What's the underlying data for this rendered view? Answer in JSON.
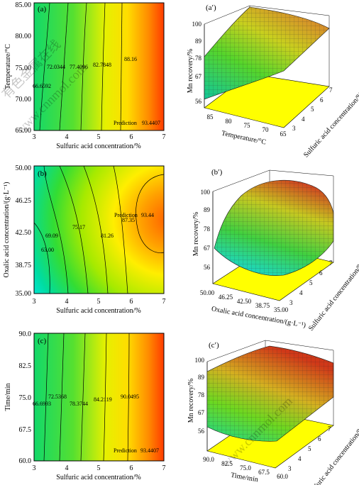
{
  "watermark": {
    "text": "www.cnnmol.com",
    "cn_text": "有色金属在线"
  },
  "colors": {
    "contour_low": "#00e5e5",
    "contour_mid": "#33dd33",
    "contour_high1": "#ffff00",
    "contour_high2": "#ff8800",
    "contour_top": "#ff2000",
    "surface_floor": "#ffff00"
  },
  "chart_data": [
    {
      "panel": "(a)",
      "type": "contour",
      "xlabel": "Sulfuric acid concentration/%",
      "ylabel": "Temperature/°C",
      "xlim": [
        3,
        7
      ],
      "ylim": [
        65,
        85
      ],
      "xticks": [
        "3",
        "4",
        "5",
        "6",
        "7"
      ],
      "yticks": [
        "65.00",
        "70.00",
        "75.00",
        "80.00",
        "85.00"
      ],
      "contours": [
        {
          "label": "66.6592",
          "x": 3.6
        },
        {
          "label": "72.0344",
          "x": 4.3
        },
        {
          "label": "77.4096",
          "x": 4.9
        },
        {
          "label": "82.7848",
          "x": 5.5
        },
        {
          "label": "88.16",
          "x": 6.0
        }
      ],
      "prediction": {
        "text": "Prediction",
        "value": "93.4407",
        "x": 6.7,
        "y": 65.5
      }
    },
    {
      "panel": "(a′)",
      "type": "surface",
      "zlabel": "Mn recovery/%",
      "xlabel": "Temperature/°C",
      "ylabel": "Sulfuric acid concentration/%",
      "zticks": [
        "56",
        "67",
        "78",
        "89",
        "100"
      ],
      "xticks": [
        "85",
        "80",
        "75",
        "70",
        "65"
      ],
      "yticks": [
        "3",
        "4",
        "5",
        "6",
        "7"
      ]
    },
    {
      "panel": "(b)",
      "type": "contour",
      "xlabel": "Sulfuric acid concentration/%",
      "ylabel": "Oxalic acid concentration/(g·L⁻¹)",
      "xlim": [
        3,
        7
      ],
      "ylim": [
        35,
        50
      ],
      "xticks": [
        "3",
        "4",
        "5",
        "6",
        "7"
      ],
      "yticks": [
        "35.00",
        "38.75",
        "42.50",
        "46.25",
        "50.00"
      ],
      "contours": [
        {
          "label": "63.00"
        },
        {
          "label": "69.09"
        },
        {
          "label": "75.17"
        },
        {
          "label": "81.26"
        },
        {
          "label": "87.35"
        }
      ],
      "prediction": {
        "text": "Prediction",
        "value": "93.44",
        "x": 6.2,
        "y": 44.0
      }
    },
    {
      "panel": "(b′)",
      "type": "surface",
      "zlabel": "Mn recovery/%",
      "xlabel": "Oxalic acid concentration/(g·L⁻¹)",
      "ylabel": "Sulfuric acid concentration/%",
      "zticks": [
        "56",
        "67",
        "78",
        "89",
        "100"
      ],
      "xticks": [
        "50.00",
        "46.25",
        "42.50",
        "38.75",
        "35.00"
      ],
      "yticks": [
        "3",
        "4",
        "5",
        "6",
        "7"
      ]
    },
    {
      "panel": "(c)",
      "type": "contour",
      "xlabel": "Sulfuric acid concentration/%",
      "ylabel": "Time/min",
      "xlim": [
        3,
        7
      ],
      "ylim": [
        60,
        90
      ],
      "xticks": [
        "3",
        "4",
        "5",
        "6",
        "7"
      ],
      "yticks": [
        "60.0",
        "67.5",
        "75.0",
        "82.5",
        "90.0"
      ],
      "contours": [
        {
          "label": "66.6993",
          "x": 3.6
        },
        {
          "label": "72.5368",
          "x": 4.0
        },
        {
          "label": "78.3744",
          "x": 4.6
        },
        {
          "label": "84.2119",
          "x": 5.3
        },
        {
          "label": "90.0495",
          "x": 6.0
        }
      ],
      "prediction": {
        "text": "Prediction",
        "value": "93.4407",
        "x": 6.7,
        "y": 60.8
      }
    },
    {
      "panel": "(c′)",
      "type": "surface",
      "zlabel": "Mn recovery/%",
      "xlabel": "Time/min",
      "ylabel": "Sulfuric acid concentration/%",
      "zticks": [
        "56",
        "67",
        "78",
        "89",
        "100"
      ],
      "xticks": [
        "90.0",
        "82.5",
        "75.0",
        "67.5",
        "60.0"
      ],
      "yticks": [
        "3",
        "4",
        "5",
        "6",
        "7"
      ]
    }
  ]
}
